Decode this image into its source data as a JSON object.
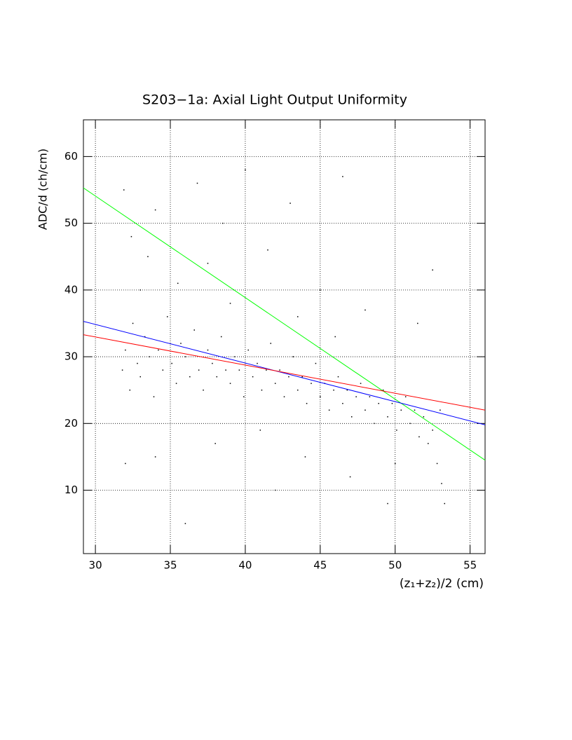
{
  "chart_data": {
    "type": "scatter",
    "title": "S203−1a: Axial Light Output Uniformity",
    "x_label": "(z₁+z₂)/2 (cm)",
    "y_label": "ADC/d (ch/cm)",
    "xlim": [
      29.2,
      56
    ],
    "ylim": [
      0.5,
      65.5
    ],
    "xticks": [
      30,
      35,
      40,
      45,
      50,
      55
    ],
    "yticks": [
      10,
      20,
      30,
      40,
      50,
      60
    ],
    "grid": true,
    "series": [
      {
        "type": "scatter",
        "color": "#000000",
        "x": [
          31.8,
          32.0,
          32.3,
          32.5,
          32.8,
          33.0,
          33.3,
          33.6,
          33.9,
          34.2,
          34.5,
          34.8,
          35.1,
          35.4,
          35.7,
          36.0,
          36.3,
          36.6,
          36.9,
          37.2,
          37.5,
          37.8,
          38.1,
          38.4,
          38.7,
          39.0,
          39.3,
          39.6,
          39.9,
          40.2,
          40.5,
          40.8,
          41.1,
          41.4,
          41.7,
          42.0,
          42.3,
          42.6,
          42.9,
          43.2,
          43.5,
          43.8,
          44.1,
          44.4,
          44.7,
          45.0,
          45.3,
          45.6,
          45.9,
          46.2,
          46.5,
          46.8,
          47.1,
          47.4,
          47.7,
          48.0,
          48.3,
          48.6,
          48.9,
          49.2,
          49.5,
          49.8,
          50.1,
          50.4,
          50.7,
          51.0,
          51.3,
          51.6,
          51.9,
          52.2,
          52.5,
          52.8,
          53.1,
          53.3,
          53.0,
          31.9,
          32.4,
          33.5,
          34.0,
          35.5,
          36.8,
          37.5,
          38.5,
          40.0,
          41.5,
          43.0,
          45.0,
          46.5,
          48.0,
          44.0,
          38.0,
          34.0,
          32.0,
          36.0,
          42.0,
          47.0,
          49.5,
          51.5,
          52.5,
          50.0,
          33.0,
          39.0,
          41.0,
          43.5,
          46.0
        ],
        "y": [
          28,
          31,
          25,
          35,
          29,
          27,
          33,
          30,
          24,
          31,
          28,
          36,
          29,
          26,
          32,
          30,
          27,
          34,
          28,
          25,
          31,
          29,
          27,
          33,
          28,
          26,
          30,
          28,
          24,
          31,
          27,
          29,
          25,
          28,
          32,
          26,
          28,
          24,
          27,
          30,
          25,
          27,
          23,
          26,
          29,
          24,
          26,
          22,
          25,
          27,
          23,
          25,
          21,
          24,
          26,
          22,
          24,
          20,
          23,
          25,
          21,
          23,
          19,
          22,
          24,
          20,
          22,
          18,
          21,
          17,
          19,
          14,
          11,
          8,
          22,
          55,
          48,
          45,
          52,
          41,
          56,
          44,
          50,
          58,
          46,
          53,
          40,
          57,
          37,
          15,
          17,
          15,
          14,
          5,
          10,
          12,
          8,
          35,
          43,
          14,
          40,
          38,
          19,
          36,
          33
        ]
      },
      {
        "type": "line",
        "color": "#00ff00",
        "x": [
          29.2,
          56
        ],
        "y": [
          55.3,
          14.5
        ]
      },
      {
        "type": "line",
        "color": "#0000ff",
        "x": [
          29.2,
          56
        ],
        "y": [
          35.3,
          19.8
        ]
      },
      {
        "type": "line",
        "color": "#ff0000",
        "x": [
          29.2,
          56
        ],
        "y": [
          33.3,
          22.0
        ]
      }
    ]
  }
}
